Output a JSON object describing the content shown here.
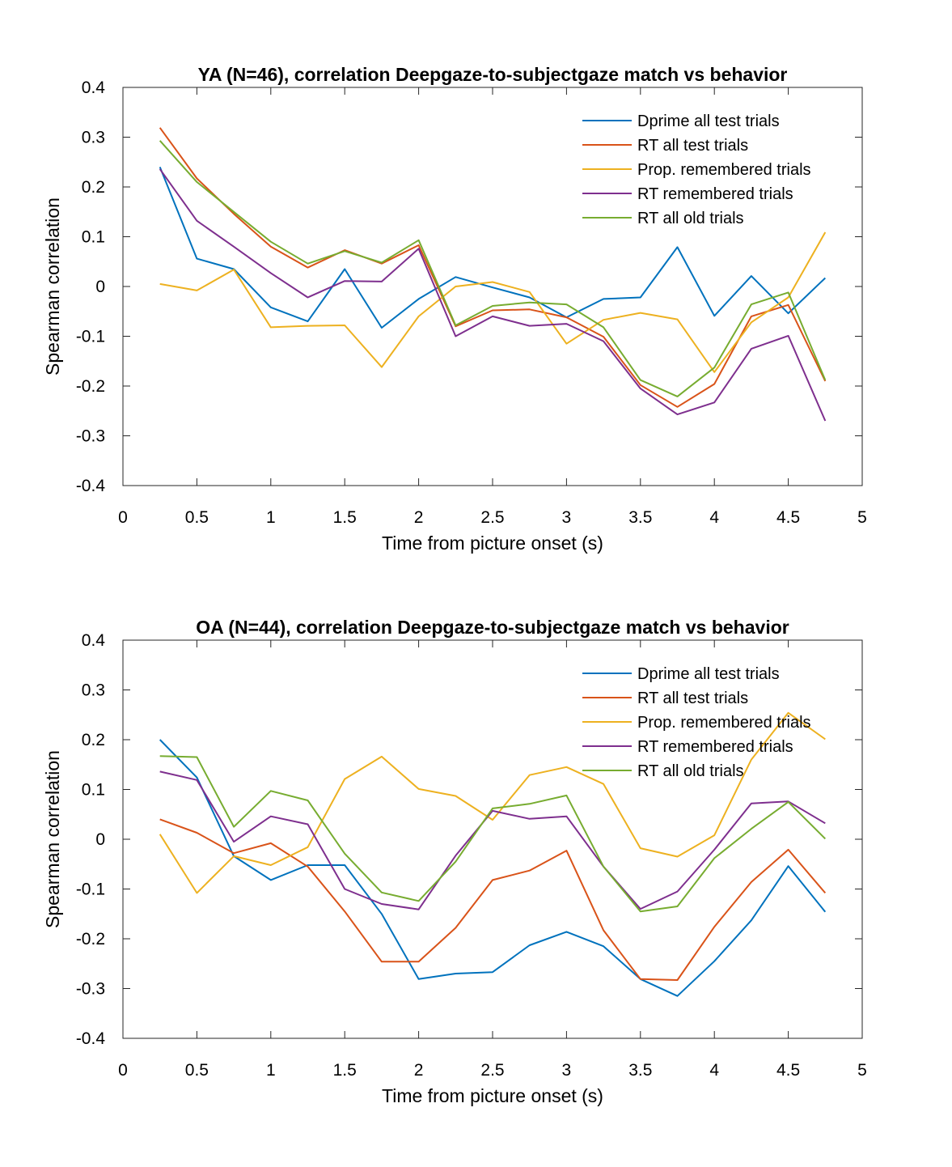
{
  "chart_data": [
    {
      "type": "line",
      "title": "YA (N=46), correlation Deepgaze-to-subjectgaze match vs behavior",
      "xlabel": "Time from picture onset (s)",
      "ylabel": "Spearman correlation",
      "xlim": [
        0,
        5
      ],
      "ylim": [
        -0.4,
        0.4
      ],
      "xticks": [
        0,
        0.5,
        1,
        1.5,
        2,
        2.5,
        3,
        3.5,
        4,
        4.5,
        5
      ],
      "xtick_labels": [
        "0",
        "0.5",
        "1",
        "1.5",
        "2",
        "2.5",
        "3",
        "3.5",
        "4",
        "4.5",
        "5"
      ],
      "yticks": [
        -0.4,
        -0.3,
        -0.2,
        -0.1,
        0,
        0.1,
        0.2,
        0.3,
        0.4
      ],
      "ytick_labels": [
        "-0.4",
        "-0.3",
        "-0.2",
        "-0.1",
        "0",
        "0.1",
        "0.2",
        "0.3",
        "0.4"
      ],
      "grid": false,
      "legend_position": "top-right",
      "x": [
        0.25,
        0.5,
        0.75,
        1,
        1.25,
        1.5,
        1.75,
        2,
        2.25,
        2.5,
        2.75,
        3,
        3.25,
        3.5,
        3.75,
        4,
        4.25,
        4.5,
        4.75
      ],
      "series": [
        {
          "name": "Dprime all test trials",
          "color": "#0072BD",
          "values": [
            0.24,
            0.056,
            0.035,
            -0.042,
            -0.07,
            0.035,
            -0.083,
            -0.025,
            0.019,
            -0.002,
            -0.022,
            -0.062,
            -0.025,
            -0.022,
            0.079,
            -0.059,
            0.021,
            -0.054,
            0.017
          ]
        },
        {
          "name": "RT all test trials",
          "color": "#D95319",
          "values": [
            0.319,
            0.217,
            0.146,
            0.08,
            0.038,
            0.073,
            0.046,
            0.083,
            -0.08,
            -0.048,
            -0.046,
            -0.062,
            -0.101,
            -0.198,
            -0.242,
            -0.196,
            -0.06,
            -0.037,
            -0.19
          ]
        },
        {
          "name": "Prop. remembered trials",
          "color": "#EDB120",
          "values": [
            0.005,
            -0.008,
            0.034,
            -0.082,
            -0.079,
            -0.078,
            -0.162,
            -0.06,
            0.0,
            0.009,
            -0.011,
            -0.115,
            -0.067,
            -0.053,
            -0.066,
            -0.172,
            -0.072,
            -0.022,
            0.109
          ]
        },
        {
          "name": "RT remembered trials",
          "color": "#7E2F8E",
          "values": [
            0.236,
            0.132,
            0.08,
            0.027,
            -0.022,
            0.011,
            0.01,
            0.076,
            -0.1,
            -0.06,
            -0.079,
            -0.075,
            -0.11,
            -0.205,
            -0.257,
            -0.233,
            -0.125,
            -0.099,
            -0.27
          ]
        },
        {
          "name": "RT all old trials",
          "color": "#77AC30",
          "values": [
            0.293,
            0.21,
            0.15,
            0.09,
            0.046,
            0.071,
            0.048,
            0.093,
            -0.078,
            -0.039,
            -0.032,
            -0.036,
            -0.082,
            -0.188,
            -0.221,
            -0.163,
            -0.036,
            -0.012,
            -0.188
          ]
        }
      ]
    },
    {
      "type": "line",
      "title": "OA (N=44), correlation Deepgaze-to-subjectgaze match vs behavior",
      "xlabel": "Time from picture onset (s)",
      "ylabel": "Spearman correlation",
      "xlim": [
        0,
        5
      ],
      "ylim": [
        -0.4,
        0.4
      ],
      "xticks": [
        0,
        0.5,
        1,
        1.5,
        2,
        2.5,
        3,
        3.5,
        4,
        4.5,
        5
      ],
      "xtick_labels": [
        "0",
        "0.5",
        "1",
        "1.5",
        "2",
        "2.5",
        "3",
        "3.5",
        "4",
        "4.5",
        "5"
      ],
      "yticks": [
        -0.4,
        -0.3,
        -0.2,
        -0.1,
        0,
        0.1,
        0.2,
        0.3,
        0.4
      ],
      "ytick_labels": [
        "-0.4",
        "-0.3",
        "-0.2",
        "-0.1",
        "0",
        "0.1",
        "0.2",
        "0.3",
        "0.4"
      ],
      "grid": false,
      "legend_position": "top-right",
      "x": [
        0.25,
        0.5,
        0.75,
        1,
        1.25,
        1.5,
        1.75,
        2,
        2.25,
        2.5,
        2.75,
        3,
        3.25,
        3.5,
        3.75,
        4,
        4.25,
        4.5,
        4.75
      ],
      "series": [
        {
          "name": "Dprime all test trials",
          "color": "#0072BD",
          "values": [
            0.2,
            0.124,
            -0.034,
            -0.082,
            -0.052,
            -0.052,
            -0.15,
            -0.281,
            -0.27,
            -0.267,
            -0.213,
            -0.186,
            -0.215,
            -0.281,
            -0.315,
            -0.245,
            -0.163,
            -0.054,
            -0.146
          ]
        },
        {
          "name": "RT all test trials",
          "color": "#D95319",
          "values": [
            0.04,
            0.013,
            -0.028,
            -0.008,
            -0.055,
            -0.145,
            -0.246,
            -0.246,
            -0.178,
            -0.082,
            -0.063,
            -0.023,
            -0.183,
            -0.281,
            -0.283,
            -0.176,
            -0.086,
            -0.021,
            -0.108
          ]
        },
        {
          "name": "Prop. remembered trials",
          "color": "#EDB120",
          "values": [
            0.01,
            -0.108,
            -0.034,
            -0.052,
            -0.016,
            0.121,
            0.166,
            0.101,
            0.087,
            0.039,
            0.129,
            0.145,
            0.111,
            -0.018,
            -0.035,
            0.008,
            0.16,
            0.254,
            0.201
          ]
        },
        {
          "name": "RT remembered trials",
          "color": "#7E2F8E",
          "values": [
            0.136,
            0.119,
            -0.005,
            0.046,
            0.03,
            -0.1,
            -0.13,
            -0.141,
            -0.033,
            0.057,
            0.041,
            0.046,
            -0.055,
            -0.14,
            -0.105,
            -0.021,
            0.072,
            0.076,
            0.032
          ]
        },
        {
          "name": "RT all old trials",
          "color": "#77AC30",
          "values": [
            0.167,
            0.165,
            0.025,
            0.097,
            0.078,
            -0.029,
            -0.107,
            -0.124,
            -0.045,
            0.062,
            0.071,
            0.088,
            -0.055,
            -0.145,
            -0.135,
            -0.038,
            0.021,
            0.075,
            0.001
          ]
        }
      ]
    }
  ]
}
